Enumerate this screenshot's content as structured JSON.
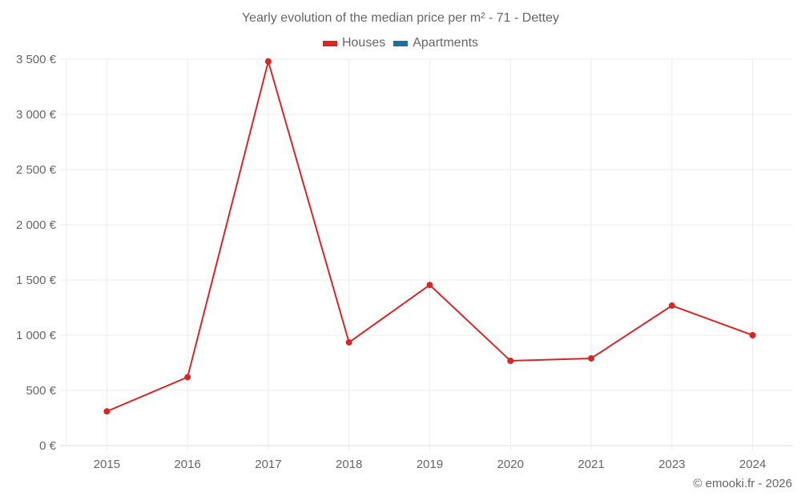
{
  "title": "Yearly evolution of the median price per m² - 71 - Dettey",
  "legend": [
    {
      "label": "Houses",
      "color": "#d62728"
    },
    {
      "label": "Apartments",
      "color": "#1f6fa3"
    }
  ],
  "footer": "© emooki.fr - 2026",
  "chart_data": {
    "type": "line",
    "title": "Yearly evolution of the median price per m² - 71 - Dettey",
    "xlabel": "",
    "ylabel": "",
    "categories": [
      "2015",
      "2016",
      "2017",
      "2018",
      "2019",
      "2020",
      "2021",
      "2023",
      "2024"
    ],
    "series": [
      {
        "name": "Houses",
        "color": "#d62728",
        "values": [
          310,
          620,
          3480,
          935,
          1455,
          768,
          790,
          1268,
          1000
        ]
      },
      {
        "name": "Apartments",
        "color": "#1f6fa3",
        "values": []
      }
    ],
    "yticks": [
      "0 €",
      "500 €",
      "1 000 €",
      "1 500 €",
      "2 000 €",
      "2 500 €",
      "3 000 €",
      "3 500 €"
    ],
    "ylim": [
      0,
      3500
    ],
    "grid": true,
    "legend_position": "top"
  }
}
